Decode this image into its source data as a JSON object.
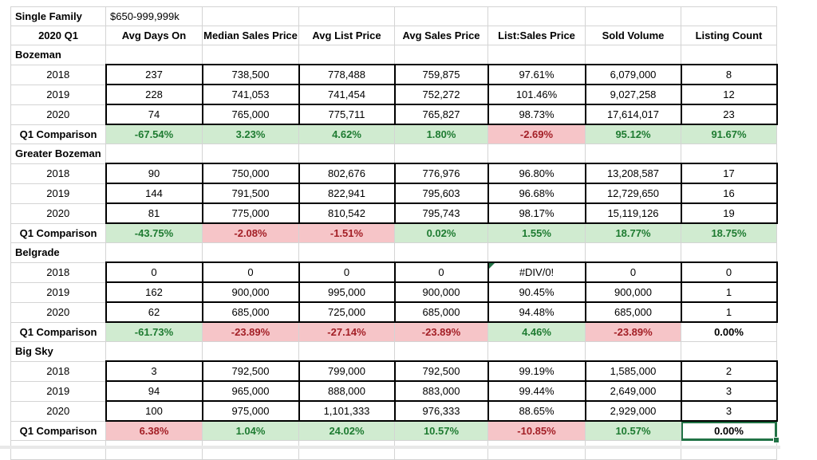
{
  "sheet": {
    "title_label": "Single Family",
    "title_value": "$650-999,999k",
    "period_label": "2020 Q1",
    "comparison_label": "Q1 Comparison",
    "columns": [
      "Avg Days On",
      "Median Sales Price",
      "Avg List Price",
      "Avg Sales Price",
      "List:Sales Price",
      "Sold Volume",
      "Listing Count"
    ],
    "colors": {
      "good_bg": "#d0ebd0",
      "good_text": "#1e7b31",
      "bad_bg": "#f6c5c8",
      "bad_text": "#a31f26",
      "selection_border": "#217346",
      "error_flag": "#217346",
      "gridline": "#d4d4d4",
      "block_border": "#000000"
    },
    "sections": [
      {
        "name": "Bozeman",
        "years": [
          {
            "label": "2018",
            "values": [
              "237",
              "738,500",
              "778,488",
              "759,875",
              "97.61%",
              "6,079,000",
              "8"
            ]
          },
          {
            "label": "2019",
            "values": [
              "228",
              "741,053",
              "741,454",
              "752,272",
              "101.46%",
              "9,027,258",
              "12"
            ]
          },
          {
            "label": "2020",
            "values": [
              "74",
              "765,000",
              "775,711",
              "765,827",
              "98.73%",
              "17,614,017",
              "23"
            ]
          }
        ],
        "comparison": [
          {
            "text": "-67.54%",
            "state": "good"
          },
          {
            "text": "3.23%",
            "state": "good"
          },
          {
            "text": "4.62%",
            "state": "good"
          },
          {
            "text": "1.80%",
            "state": "good"
          },
          {
            "text": "-2.69%",
            "state": "bad"
          },
          {
            "text": "95.12%",
            "state": "good"
          },
          {
            "text": "91.67%",
            "state": "good"
          }
        ]
      },
      {
        "name": "Greater Bozeman",
        "years": [
          {
            "label": "2018",
            "values": [
              "90",
              "750,000",
              "802,676",
              "776,976",
              "96.80%",
              "13,208,587",
              "17"
            ]
          },
          {
            "label": "2019",
            "values": [
              "144",
              "791,500",
              "822,941",
              "795,603",
              "96.68%",
              "12,729,650",
              "16"
            ]
          },
          {
            "label": "2020",
            "values": [
              "81",
              "775,000",
              "810,542",
              "795,743",
              "98.17%",
              "15,119,126",
              "19"
            ]
          }
        ],
        "comparison": [
          {
            "text": "-43.75%",
            "state": "good"
          },
          {
            "text": "-2.08%",
            "state": "bad"
          },
          {
            "text": "-1.51%",
            "state": "bad"
          },
          {
            "text": "0.02%",
            "state": "good"
          },
          {
            "text": "1.55%",
            "state": "good"
          },
          {
            "text": "18.77%",
            "state": "good"
          },
          {
            "text": "18.75%",
            "state": "good"
          }
        ]
      },
      {
        "name": "Belgrade",
        "years": [
          {
            "label": "2018",
            "values": [
              "0",
              "0",
              "0",
              "0",
              "#DIV/0!",
              "0",
              "0"
            ],
            "error_col": 4
          },
          {
            "label": "2019",
            "values": [
              "162",
              "900,000",
              "995,000",
              "900,000",
              "90.45%",
              "900,000",
              "1"
            ]
          },
          {
            "label": "2020",
            "values": [
              "62",
              "685,000",
              "725,000",
              "685,000",
              "94.48%",
              "685,000",
              "1"
            ]
          }
        ],
        "comparison": [
          {
            "text": "-61.73%",
            "state": "good"
          },
          {
            "text": "-23.89%",
            "state": "bad"
          },
          {
            "text": "-27.14%",
            "state": "bad"
          },
          {
            "text": "-23.89%",
            "state": "bad"
          },
          {
            "text": "4.46%",
            "state": "good"
          },
          {
            "text": "-23.89%",
            "state": "bad"
          },
          {
            "text": "0.00%",
            "state": "neutral"
          }
        ]
      },
      {
        "name": "Big Sky",
        "years": [
          {
            "label": "2018",
            "values": [
              "3",
              "792,500",
              "799,000",
              "792,500",
              "99.19%",
              "1,585,000",
              "2"
            ]
          },
          {
            "label": "2019",
            "values": [
              "94",
              "965,000",
              "888,000",
              "883,000",
              "99.44%",
              "2,649,000",
              "3"
            ]
          },
          {
            "label": "2020",
            "values": [
              "100",
              "975,000",
              "1,101,333",
              "976,333",
              "88.65%",
              "2,929,000",
              "3"
            ]
          }
        ],
        "comparison": [
          {
            "text": "6.38%",
            "state": "bad"
          },
          {
            "text": "1.04%",
            "state": "good"
          },
          {
            "text": "24.02%",
            "state": "good"
          },
          {
            "text": "10.57%",
            "state": "good"
          },
          {
            "text": "-10.85%",
            "state": "bad"
          },
          {
            "text": "10.57%",
            "state": "good"
          },
          {
            "text": "0.00%",
            "state": "neutral",
            "selected": true
          }
        ]
      }
    ]
  }
}
